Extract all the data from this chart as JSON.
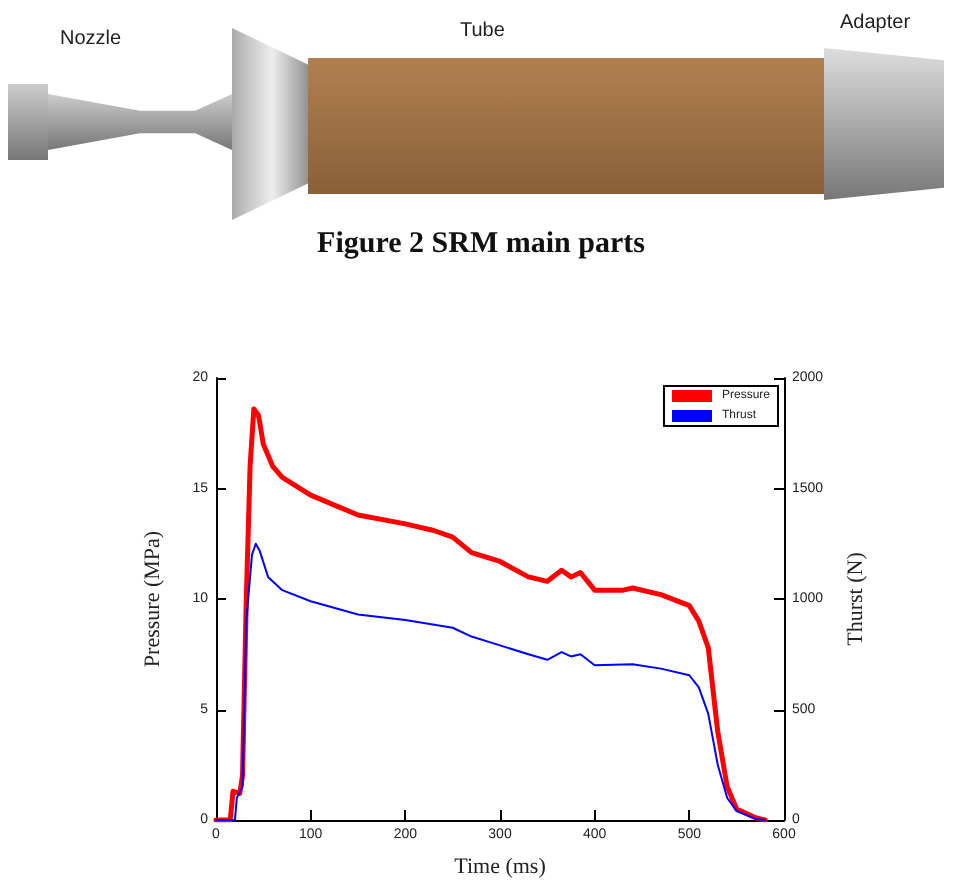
{
  "chart_data": {
    "type": "line",
    "xlabel": "Time (ms)",
    "ylabel": "Pressure (MPa)",
    "y2label": "Thurst (N)",
    "annotations": [
      "Nozzle",
      "Tube",
      "Adapter",
      "Figure 2 SRM main parts"
    ],
    "xlim": [
      0,
      600
    ],
    "xticks": [
      0,
      100,
      200,
      300,
      400,
      500,
      600
    ],
    "ylim": [
      0,
      20
    ],
    "yticks": [
      0,
      5,
      10,
      15,
      20
    ],
    "y2lim": [
      0,
      2000
    ],
    "y2ticks": [
      0,
      500,
      1000,
      1500,
      2000
    ],
    "grid": false,
    "legend": "top right",
    "marker": "none",
    "line_style": "solid",
    "series": [
      {
        "name": "Pressure",
        "color": "#ff0000",
        "x": [
          0,
          15,
          18,
          25,
          28,
          32,
          36,
          40,
          45,
          50,
          60,
          70,
          100,
          150,
          200,
          230,
          250,
          270,
          300,
          330,
          350,
          365,
          375,
          385,
          400,
          430,
          440,
          470,
          500,
          510,
          520,
          530,
          540,
          550,
          570,
          580
        ],
        "values": [
          0,
          0,
          1.3,
          1.2,
          2,
          10,
          16,
          18.6,
          18.3,
          17,
          16,
          15.5,
          14.7,
          13.8,
          13.4,
          13.1,
          12.8,
          12.1,
          11.7,
          11.0,
          10.8,
          11.3,
          11.0,
          11.2,
          10.4,
          10.4,
          10.5,
          10.2,
          9.7,
          9.0,
          7.8,
          4,
          1.5,
          0.5,
          0.1,
          0
        ]
      },
      {
        "name": "Thrust",
        "color": "#0000ff",
        "axis": "y2",
        "x": [
          0,
          20,
          22,
          28,
          32,
          38,
          42,
          46,
          55,
          70,
          100,
          150,
          200,
          250,
          270,
          300,
          330,
          350,
          365,
          375,
          385,
          400,
          440,
          470,
          500,
          510,
          520,
          530,
          540,
          550,
          570,
          580
        ],
        "values": [
          0,
          0,
          100,
          150,
          900,
          1200,
          1250,
          1220,
          1100,
          1040,
          990,
          930,
          905,
          870,
          830,
          790,
          750,
          725,
          760,
          740,
          750,
          700,
          705,
          685,
          655,
          600,
          480,
          250,
          100,
          40,
          5,
          0
        ]
      }
    ]
  }
}
